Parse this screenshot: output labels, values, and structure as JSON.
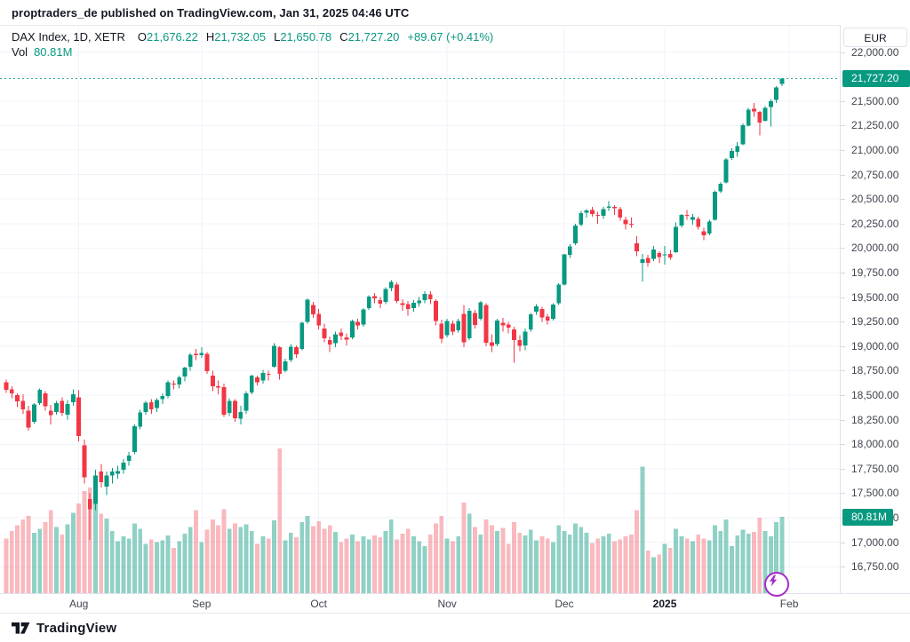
{
  "header": {
    "attribution": "proptraders_de published on TradingView.com, Jan 31, 2025 04:46 UTC"
  },
  "legend": {
    "symbol_line": "DAX Index, 1D, XETR",
    "o_label": "O",
    "o": "21,676.22",
    "h_label": "H",
    "h": "21,732.05",
    "l_label": "L",
    "l": "21,650.78",
    "c_label": "C",
    "c": "21,727.20",
    "change": "+89.67 (+0.41%)",
    "vol_label": "Vol",
    "vol": "80.81M"
  },
  "price_scale": {
    "currency_button": "EUR",
    "last_price_badge": "21,727.20",
    "volume_badge": "80.81M"
  },
  "footer": {
    "brand": "TradingView"
  },
  "colors": {
    "up": "#089981",
    "down": "#f23645",
    "vol_up": "rgba(8,153,129,0.45)",
    "vol_down": "rgba(242,54,69,0.35)",
    "badge": "#089981",
    "grid": "#f0f3fa",
    "border": "#e0e3eb",
    "fab_purple": "#a62bc8"
  },
  "chart_data": {
    "type": "candlestick+volume",
    "symbol": "DAX Index",
    "interval": "1D",
    "exchange": "XETR",
    "currency": "EUR",
    "last_price": 21727.2,
    "last_volume_millions": 80.81,
    "y_axis": {
      "min_tick": 16750,
      "max_tick": 22000,
      "step": 250
    },
    "y_ticks": [
      22000,
      21500,
      21250,
      21000,
      20750,
      20500,
      20250,
      20000,
      19750,
      19500,
      19250,
      19000,
      18750,
      18500,
      18250,
      18000,
      17750,
      17500,
      17250,
      17000,
      16750
    ],
    "x_labels": [
      {
        "text": "Aug",
        "index": 13,
        "bold": false
      },
      {
        "text": "Sep",
        "index": 35,
        "bold": false
      },
      {
        "text": "Oct",
        "index": 56,
        "bold": false
      },
      {
        "text": "Nov",
        "index": 79,
        "bold": false
      },
      {
        "text": "Dec",
        "index": 100,
        "bold": false
      },
      {
        "text": "2025",
        "index": 118,
        "bold": true
      },
      {
        "text": "Feb",
        "index": 140.3,
        "bold": false
      }
    ],
    "candles": [
      [
        "2024-07-15",
        18630,
        18660,
        18525,
        18555,
        58
      ],
      [
        "2024-07-16",
        18560,
        18590,
        18470,
        18518,
        66
      ],
      [
        "2024-07-17",
        18500,
        18520,
        18380,
        18437,
        72
      ],
      [
        "2024-07-18",
        18440,
        18510,
        18310,
        18354,
        78
      ],
      [
        "2024-07-19",
        18340,
        18390,
        18140,
        18172,
        82
      ],
      [
        "2024-07-22",
        18230,
        18420,
        18210,
        18407,
        64
      ],
      [
        "2024-07-23",
        18420,
        18570,
        18400,
        18557,
        68
      ],
      [
        "2024-07-24",
        18520,
        18540,
        18340,
        18387,
        75
      ],
      [
        "2024-07-25",
        18340,
        18400,
        18200,
        18298,
        88
      ],
      [
        "2024-07-26",
        18330,
        18440,
        18300,
        18417,
        70
      ],
      [
        "2024-07-29",
        18440,
        18480,
        18290,
        18320,
        62
      ],
      [
        "2024-07-30",
        18300,
        18450,
        18250,
        18411,
        73
      ],
      [
        "2024-07-31",
        18430,
        18560,
        18390,
        18508,
        85
      ],
      [
        "2024-08-01",
        18480,
        18550,
        18030,
        18083,
        95
      ],
      [
        "2024-08-02",
        17990,
        18050,
        17600,
        17661,
        108
      ],
      [
        "2024-08-05",
        17440,
        17500,
        17025,
        17339,
        112
      ],
      [
        "2024-08-06",
        17390,
        17740,
        17330,
        17680,
        98
      ],
      [
        "2024-08-07",
        17720,
        17800,
        17560,
        17615,
        84
      ],
      [
        "2024-08-08",
        17570,
        17720,
        17480,
        17680,
        79
      ],
      [
        "2024-08-09",
        17680,
        17760,
        17600,
        17722,
        66
      ],
      [
        "2024-08-12",
        17700,
        17780,
        17650,
        17726,
        55
      ],
      [
        "2024-08-13",
        17740,
        17850,
        17700,
        17812,
        60
      ],
      [
        "2024-08-14",
        17830,
        17920,
        17780,
        17885,
        58
      ],
      [
        "2024-08-15",
        17920,
        18200,
        17900,
        18183,
        74
      ],
      [
        "2024-08-16",
        18180,
        18350,
        18150,
        18322,
        68
      ],
      [
        "2024-08-19",
        18330,
        18440,
        18300,
        18422,
        52
      ],
      [
        "2024-08-20",
        18430,
        18460,
        18310,
        18357,
        57
      ],
      [
        "2024-08-21",
        18370,
        18470,
        18330,
        18449,
        54
      ],
      [
        "2024-08-22",
        18460,
        18520,
        18410,
        18493,
        56
      ],
      [
        "2024-08-23",
        18490,
        18650,
        18470,
        18633,
        61
      ],
      [
        "2024-08-26",
        18620,
        18650,
        18560,
        18617,
        48
      ],
      [
        "2024-08-27",
        18610,
        18700,
        18570,
        18681,
        55
      ],
      [
        "2024-08-28",
        18690,
        18790,
        18640,
        18782,
        63
      ],
      [
        "2024-08-29",
        18790,
        18930,
        18750,
        18912,
        70
      ],
      [
        "2024-08-30",
        18920,
        18970,
        18860,
        18907,
        88
      ],
      [
        "2024-09-02",
        18910,
        18990,
        18880,
        18930,
        54
      ],
      [
        "2024-09-03",
        18920,
        18940,
        18720,
        18747,
        67
      ],
      [
        "2024-09-04",
        18700,
        18750,
        18540,
        18591,
        78
      ],
      [
        "2024-09-05",
        18590,
        18650,
        18510,
        18576,
        72
      ],
      [
        "2024-09-06",
        18580,
        18620,
        18280,
        18302,
        89
      ],
      [
        "2024-09-09",
        18320,
        18470,
        18290,
        18443,
        68
      ],
      [
        "2024-09-10",
        18440,
        18460,
        18230,
        18266,
        74
      ],
      [
        "2024-09-11",
        18260,
        18390,
        18200,
        18330,
        70
      ],
      [
        "2024-09-12",
        18340,
        18540,
        18310,
        18518,
        73
      ],
      [
        "2024-09-13",
        18530,
        18710,
        18510,
        18699,
        66
      ],
      [
        "2024-09-16",
        18680,
        18700,
        18600,
        18633,
        52
      ],
      [
        "2024-09-17",
        18650,
        18760,
        18620,
        18726,
        60
      ],
      [
        "2024-09-18",
        18720,
        18750,
        18650,
        18711,
        58
      ],
      [
        "2024-09-19",
        18790,
        19030,
        18780,
        19002,
        77
      ],
      [
        "2024-09-20",
        18990,
        19000,
        18660,
        18720,
        153
      ],
      [
        "2024-09-23",
        18750,
        18870,
        18730,
        18847,
        56
      ],
      [
        "2024-09-24",
        18860,
        19020,
        18840,
        18996,
        64
      ],
      [
        "2024-09-25",
        18990,
        19010,
        18880,
        18919,
        59
      ],
      [
        "2024-09-26",
        18970,
        19250,
        18960,
        19238,
        75
      ],
      [
        "2024-09-27",
        19250,
        19490,
        19230,
        19473,
        82
      ],
      [
        "2024-09-30",
        19420,
        19450,
        19290,
        19325,
        71
      ],
      [
        "2024-10-01",
        19330,
        19380,
        19170,
        19213,
        76
      ],
      [
        "2024-10-02",
        19180,
        19230,
        19040,
        19078,
        68
      ],
      [
        "2024-10-03",
        19060,
        19100,
        18940,
        19015,
        72
      ],
      [
        "2024-10-04",
        19030,
        19150,
        18990,
        19121,
        65
      ],
      [
        "2024-10-07",
        19140,
        19180,
        19060,
        19104,
        54
      ],
      [
        "2024-10-08",
        19090,
        19130,
        19010,
        19066,
        58
      ],
      [
        "2024-10-09",
        19090,
        19270,
        19070,
        19255,
        62
      ],
      [
        "2024-10-10",
        19250,
        19280,
        19170,
        19211,
        55
      ],
      [
        "2024-10-11",
        19220,
        19390,
        19200,
        19374,
        60
      ],
      [
        "2024-10-14",
        19390,
        19520,
        19370,
        19508,
        57
      ],
      [
        "2024-10-15",
        19510,
        19540,
        19440,
        19486,
        61
      ],
      [
        "2024-10-16",
        19470,
        19500,
        19390,
        19432,
        59
      ],
      [
        "2024-10-17",
        19450,
        19600,
        19430,
        19583,
        66
      ],
      [
        "2024-10-18",
        19590,
        19675,
        19560,
        19657,
        78
      ],
      [
        "2024-10-21",
        19630,
        19650,
        19440,
        19461,
        57
      ],
      [
        "2024-10-22",
        19440,
        19480,
        19360,
        19421,
        63
      ],
      [
        "2024-10-23",
        19430,
        19460,
        19310,
        19377,
        68
      ],
      [
        "2024-10-24",
        19390,
        19470,
        19350,
        19443,
        60
      ],
      [
        "2024-10-25",
        19440,
        19500,
        19400,
        19463,
        55
      ],
      [
        "2024-10-28",
        19470,
        19560,
        19440,
        19531,
        50
      ],
      [
        "2024-10-29",
        19530,
        19560,
        19430,
        19478,
        62
      ],
      [
        "2024-10-30",
        19460,
        19480,
        19210,
        19257,
        74
      ],
      [
        "2024-10-31",
        19230,
        19270,
        19030,
        19077,
        82
      ],
      [
        "2024-11-01",
        19110,
        19280,
        19090,
        19255,
        58
      ],
      [
        "2024-11-04",
        19230,
        19260,
        19110,
        19148,
        55
      ],
      [
        "2024-11-05",
        19160,
        19280,
        19140,
        19257,
        60
      ],
      [
        "2024-11-06",
        19330,
        19420,
        18990,
        19039,
        96
      ],
      [
        "2024-11-07",
        19080,
        19390,
        19060,
        19362,
        84
      ],
      [
        "2024-11-08",
        19340,
        19370,
        19180,
        19215,
        70
      ],
      [
        "2024-11-11",
        19280,
        19460,
        19260,
        19448,
        62
      ],
      [
        "2024-11-12",
        19420,
        19440,
        19000,
        19033,
        78
      ],
      [
        "2024-11-13",
        19040,
        19120,
        18940,
        19003,
        72
      ],
      [
        "2024-11-14",
        19020,
        19280,
        19000,
        19263,
        66
      ],
      [
        "2024-11-15",
        19240,
        19290,
        19150,
        19211,
        69
      ],
      [
        "2024-11-18",
        19220,
        19250,
        19130,
        19189,
        52
      ],
      [
        "2024-11-19",
        19170,
        19200,
        18830,
        19061,
        75
      ],
      [
        "2024-11-20",
        19060,
        19110,
        18950,
        19005,
        64
      ],
      [
        "2024-11-21",
        19010,
        19180,
        18960,
        19146,
        61
      ],
      [
        "2024-11-22",
        19170,
        19340,
        19150,
        19323,
        67
      ],
      [
        "2024-11-25",
        19350,
        19430,
        19320,
        19405,
        56
      ],
      [
        "2024-11-26",
        19380,
        19400,
        19250,
        19295,
        60
      ],
      [
        "2024-11-27",
        19300,
        19330,
        19220,
        19261,
        58
      ],
      [
        "2024-11-28",
        19280,
        19440,
        19260,
        19426,
        54
      ],
      [
        "2024-11-29",
        19440,
        19640,
        19420,
        19626,
        72
      ],
      [
        "2024-12-02",
        19630,
        19940,
        19620,
        19934,
        66
      ],
      [
        "2024-12-03",
        19930,
        20040,
        19900,
        20016,
        62
      ],
      [
        "2024-12-04",
        20050,
        20250,
        20030,
        20232,
        74
      ],
      [
        "2024-12-05",
        20240,
        20380,
        20220,
        20359,
        70
      ],
      [
        "2024-12-06",
        20360,
        20400,
        20310,
        20385,
        64
      ],
      [
        "2024-12-09",
        20390,
        20420,
        20320,
        20346,
        53
      ],
      [
        "2024-12-10",
        20340,
        20370,
        20250,
        20329,
        58
      ],
      [
        "2024-12-11",
        20330,
        20420,
        20300,
        20399,
        60
      ],
      [
        "2024-12-12",
        20410,
        20480,
        20380,
        20426,
        63
      ],
      [
        "2024-12-13",
        20420,
        20440,
        20340,
        20406,
        55
      ],
      [
        "2024-12-16",
        20400,
        20420,
        20280,
        20313,
        57
      ],
      [
        "2024-12-17",
        20290,
        20320,
        20190,
        20246,
        60
      ],
      [
        "2024-12-18",
        20250,
        20310,
        20210,
        20242,
        62
      ],
      [
        "2024-12-19",
        20050,
        20120,
        19920,
        19969,
        88
      ],
      [
        "2024-12-20",
        19850,
        19940,
        19660,
        19885,
        134
      ],
      [
        "2024-12-23",
        19900,
        19930,
        19810,
        19849,
        45
      ],
      [
        "2024-12-27",
        19890,
        20020,
        19870,
        19984,
        38
      ],
      [
        "2024-12-30",
        19950,
        19970,
        19850,
        19909,
        41
      ],
      [
        "2025-01-02",
        19930,
        20020,
        19830,
        19938,
        52
      ],
      [
        "2025-01-03",
        19940,
        19980,
        19880,
        19906,
        48
      ],
      [
        "2025-01-06",
        19960,
        20260,
        19950,
        20217,
        68
      ],
      [
        "2025-01-07",
        20230,
        20350,
        20210,
        20340,
        60
      ],
      [
        "2025-01-08",
        20340,
        20390,
        20290,
        20330,
        58
      ],
      [
        "2025-01-09",
        20290,
        20350,
        20240,
        20317,
        55
      ],
      [
        "2025-01-10",
        20300,
        20320,
        20190,
        20215,
        62
      ],
      [
        "2025-01-13",
        20170,
        20210,
        20080,
        20133,
        58
      ],
      [
        "2025-01-14",
        20150,
        20290,
        20130,
        20271,
        56
      ],
      [
        "2025-01-15",
        20290,
        20590,
        20280,
        20575,
        72
      ],
      [
        "2025-01-16",
        20580,
        20675,
        20560,
        20655,
        66
      ],
      [
        "2025-01-17",
        20670,
        20920,
        20660,
        20903,
        78
      ],
      [
        "2025-01-20",
        20920,
        21020,
        20900,
        20990,
        50
      ],
      [
        "2025-01-21",
        20980,
        21080,
        20930,
        21042,
        61
      ],
      [
        "2025-01-22",
        21060,
        21270,
        21050,
        21254,
        67
      ],
      [
        "2025-01-23",
        21250,
        21430,
        21240,
        21412,
        63
      ],
      [
        "2025-01-24",
        21420,
        21480,
        21340,
        21394,
        65
      ],
      [
        "2025-01-27",
        21390,
        21400,
        21150,
        21282,
        80
      ],
      [
        "2025-01-28",
        21300,
        21450,
        21290,
        21431,
        66
      ],
      [
        "2025-01-29",
        21440,
        21520,
        21240,
        21498,
        60
      ],
      [
        "2025-01-30",
        21510,
        21650,
        21480,
        21637.53,
        75
      ],
      [
        "2025-01-31",
        21676.22,
        21732.05,
        21650.78,
        21727.2,
        80.81
      ]
    ]
  }
}
